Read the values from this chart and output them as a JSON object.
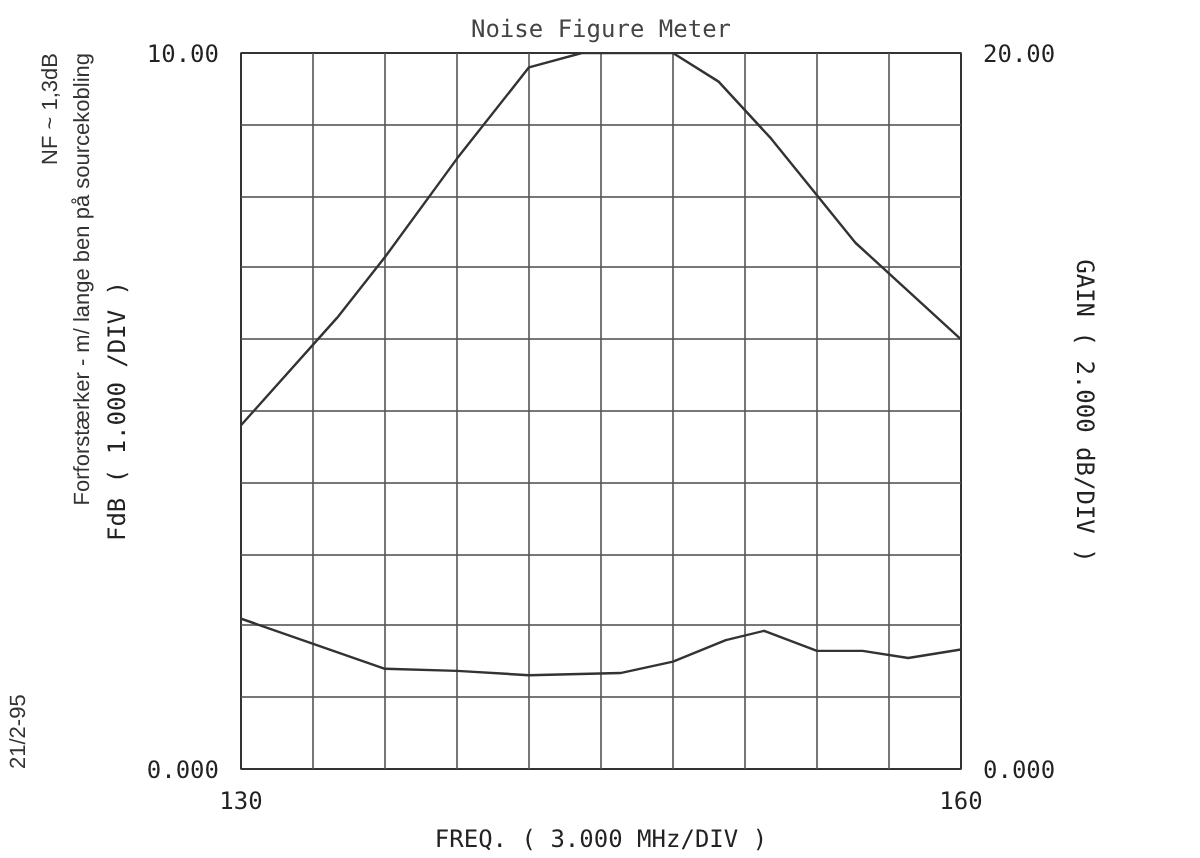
{
  "chart_data": {
    "type": "line",
    "title": "Noise Figure Meter",
    "xlabel": "FREQ. ( 3.000 MHz/DIV )",
    "ylabel": "FdB ( 1.000 /DIV )",
    "y2label": "GAIN ( 2.000 dB/DIV )",
    "annotations": [
      "Forforstærker - m/ lange ben på sourcekobling",
      "NF ~ 1,3dB",
      "21/2-95"
    ],
    "xlim": [
      130,
      160
    ],
    "ylim": [
      0,
      10
    ],
    "y2lim": [
      0,
      20
    ],
    "xticks": [
      130,
      {
        "value": 133,
        "label": null
      },
      {
        "value": 136,
        "label": null
      },
      {
        "value": 139,
        "label": null
      },
      {
        "value": 142,
        "label": null
      },
      {
        "value": 145,
        "label": null
      },
      {
        "value": 148,
        "label": null
      },
      {
        "value": 151,
        "label": null
      },
      {
        "value": 154,
        "label": null
      },
      {
        "value": 157,
        "label": null
      },
      160
    ],
    "yticks": [
      {
        "value": 0,
        "label": "0.000"
      },
      {
        "value": 1,
        "label": null
      },
      {
        "value": 2,
        "label": null
      },
      {
        "value": 3,
        "label": null
      },
      {
        "value": 4,
        "label": null
      },
      {
        "value": 5,
        "label": null
      },
      {
        "value": 6,
        "label": null
      },
      {
        "value": 7,
        "label": null
      },
      {
        "value": 8,
        "label": null
      },
      {
        "value": 9,
        "label": null
      },
      {
        "value": 10,
        "label": "10.00"
      }
    ],
    "y2ticks": [
      {
        "value": 0,
        "label": "0.000"
      },
      {
        "value": 20,
        "label": "20.00"
      }
    ],
    "grid": true,
    "marker": "none",
    "line_style": "solid",
    "series": [
      {
        "color": "#333333",
        "x": [
          130,
          136,
          139,
          142,
          145.8,
          148,
          150.2,
          151.8,
          154,
          155.9,
          157.8,
          160
        ],
        "values": [
          2.1,
          1.4,
          1.37,
          1.31,
          1.34,
          1.5,
          1.8,
          1.93,
          1.65,
          1.65,
          1.55,
          1.67
        ]
      },
      {
        "color": "#333333",
        "axis": "y2",
        "x": [
          130,
          134,
          136,
          139,
          142,
          144.2,
          148,
          149.9,
          152.1,
          155.6,
          160
        ],
        "values": [
          9.6,
          12.6,
          14.3,
          17.05,
          19.6,
          20,
          20,
          19.2,
          17.6,
          14.7,
          12.0
        ]
      }
    ]
  }
}
